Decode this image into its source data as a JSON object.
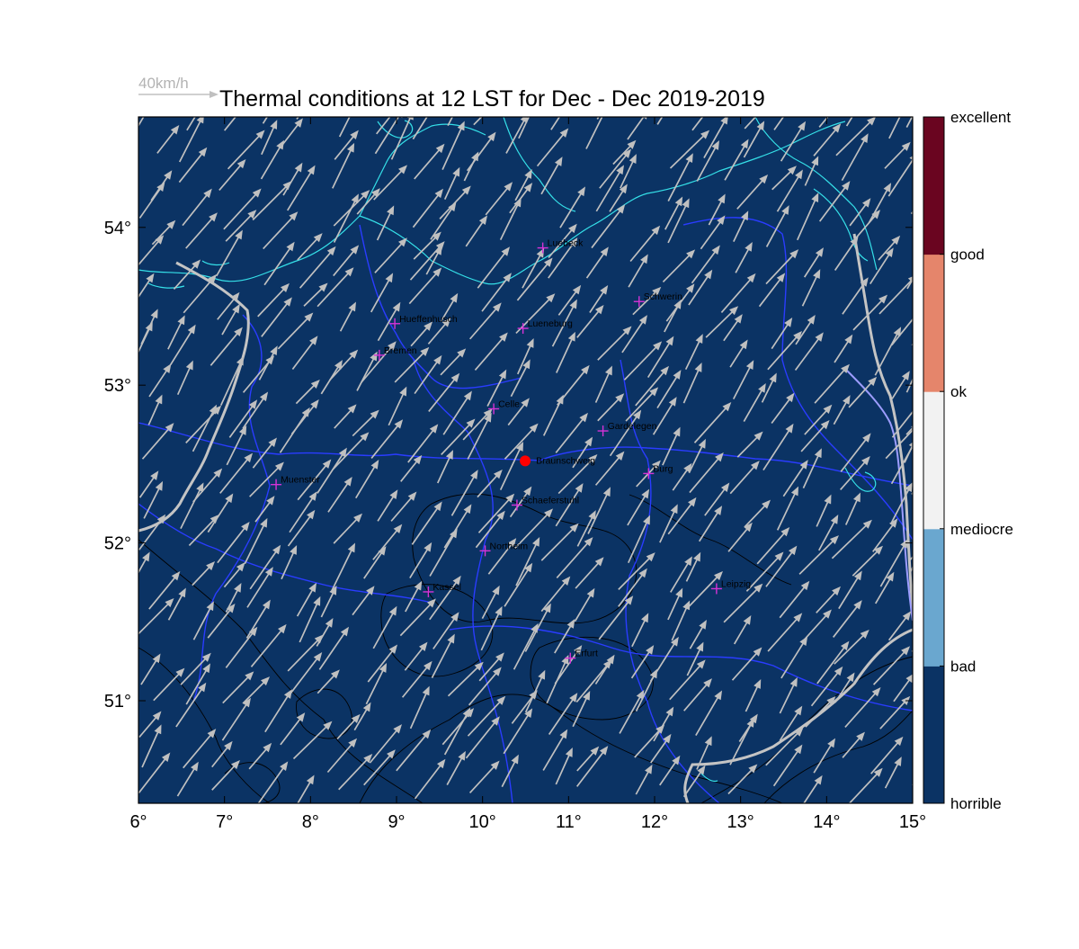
{
  "title": "Thermal conditions at 12 LST for Dec - Dec  2019-2019",
  "reference_vector": {
    "label": "40km/h",
    "speed_kmh": 40
  },
  "map": {
    "lon_range": [
      6,
      15
    ],
    "lat_range": [
      50.35,
      54.7
    ],
    "x_ticks": [
      {
        "value": 6,
        "label": "6°"
      },
      {
        "value": 7,
        "label": "7°"
      },
      {
        "value": 8,
        "label": "8°"
      },
      {
        "value": 9,
        "label": "9°"
      },
      {
        "value": 10,
        "label": "10°"
      },
      {
        "value": 11,
        "label": "11°"
      },
      {
        "value": 12,
        "label": "12°"
      },
      {
        "value": 13,
        "label": "13°"
      },
      {
        "value": 14,
        "label": "14°"
      },
      {
        "value": 15,
        "label": "15°"
      }
    ],
    "y_ticks": [
      {
        "value": 51,
        "label": "51°"
      },
      {
        "value": 52,
        "label": "52°"
      },
      {
        "value": 53,
        "label": "53°"
      },
      {
        "value": 54,
        "label": "54°"
      }
    ],
    "field_category": "horrible",
    "wind": {
      "direction_to_deg": 35,
      "speed_kmh_typical": 45
    },
    "cities": [
      {
        "name": "Luebeck",
        "lon": 10.7,
        "lat": 53.87
      },
      {
        "name": "Schwerin",
        "lon": 11.82,
        "lat": 53.53
      },
      {
        "name": "Hueffenhusch",
        "lon": 8.98,
        "lat": 53.39
      },
      {
        "name": "Lueneburg",
        "lon": 10.47,
        "lat": 53.36
      },
      {
        "name": "Bremen",
        "lon": 8.8,
        "lat": 53.19
      },
      {
        "name": "Celle",
        "lon": 10.13,
        "lat": 52.85
      },
      {
        "name": "Gardelegen",
        "lon": 11.4,
        "lat": 52.71
      },
      {
        "name": "Braunschweig",
        "lon": 10.6,
        "lat": 52.52,
        "site": true
      },
      {
        "name": "Burg",
        "lon": 11.93,
        "lat": 52.44
      },
      {
        "name": "Muenster",
        "lon": 7.6,
        "lat": 52.37
      },
      {
        "name": "Schaeferstuhl",
        "lon": 10.4,
        "lat": 52.24
      },
      {
        "name": "Northeim",
        "lon": 10.03,
        "lat": 51.95
      },
      {
        "name": "Leipzig",
        "lon": 12.72,
        "lat": 51.71
      },
      {
        "name": "Kassel",
        "lon": 9.37,
        "lat": 51.69
      },
      {
        "name": "Erfurt",
        "lon": 11.02,
        "lat": 51.27
      }
    ]
  },
  "colorbar": {
    "categories": [
      {
        "label": "horrible",
        "color": "#0b3364"
      },
      {
        "label": "bad",
        "color": "#6aa7cf"
      },
      {
        "label": "mediocre",
        "color": "#f2f2f2"
      },
      {
        "label": "ok",
        "color": "#e5856b"
      },
      {
        "label": "good",
        "color": "#6a0520"
      },
      {
        "label": "excellent",
        "color": ""
      }
    ]
  },
  "colors": {
    "field": "#0b3364",
    "arrow": "#c0c0c0",
    "coast": "#35e0e8",
    "border": "#2a3cff",
    "country_border": "#c4c4c4",
    "contour": "#000000",
    "city_marker": "#d633d6",
    "site_marker": "#ff0000"
  }
}
